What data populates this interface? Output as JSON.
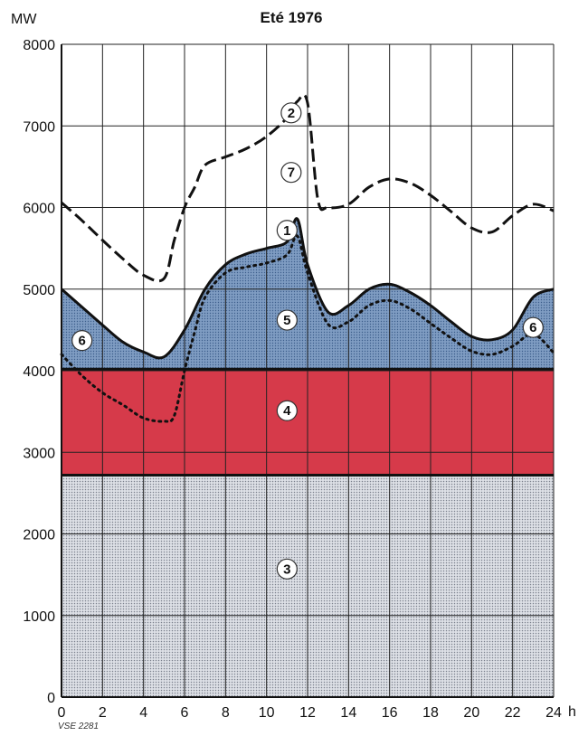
{
  "chart_data": {
    "type": "area",
    "title": "Eté 1976",
    "ylabel": "MW",
    "xlabel": "h",
    "xlim": [
      0,
      24
    ],
    "ylim": [
      0,
      8000
    ],
    "x_ticks": [
      0,
      2,
      4,
      6,
      8,
      10,
      12,
      14,
      16,
      18,
      20,
      22,
      24
    ],
    "y_ticks": [
      0,
      1000,
      2000,
      3000,
      4000,
      5000,
      6000,
      7000,
      8000
    ],
    "grid": true,
    "colors": {
      "band_3": "#c9cdd6",
      "band_4": "#d63a4a",
      "band_5": "#6f8fb8",
      "grid": "#222222"
    },
    "bands": [
      {
        "label": "3",
        "from": 0,
        "to": 2720
      },
      {
        "label": "4",
        "from": 2720,
        "to": 4020
      }
    ],
    "series": [
      {
        "style": "solid",
        "x": [
          0,
          1,
          2,
          3,
          4,
          5,
          6,
          7,
          8,
          9,
          10,
          11,
          11.5,
          12,
          13,
          14,
          15,
          16,
          17,
          18,
          19,
          20,
          21,
          22,
          23,
          24
        ],
        "values": [
          5000,
          4780,
          4560,
          4350,
          4230,
          4170,
          4500,
          5000,
          5300,
          5430,
          5500,
          5580,
          5860,
          5300,
          4720,
          4800,
          5000,
          5060,
          4960,
          4800,
          4600,
          4420,
          4380,
          4500,
          4900,
          5000
        ]
      },
      {
        "style": "dotted",
        "x": [
          0,
          1,
          2,
          3,
          4,
          5,
          5.5,
          6,
          6.5,
          7,
          8,
          9,
          10,
          11,
          11.5,
          12,
          13,
          14,
          15,
          16,
          17,
          18,
          19,
          20,
          21,
          22,
          23,
          24
        ],
        "values": [
          4200,
          3940,
          3730,
          3580,
          3420,
          3380,
          3450,
          4000,
          4480,
          4900,
          5200,
          5270,
          5320,
          5420,
          5650,
          5200,
          4570,
          4600,
          4800,
          4860,
          4760,
          4580,
          4400,
          4240,
          4200,
          4300,
          4450,
          4220
        ]
      },
      {
        "style": "dashed",
        "x": [
          0,
          1,
          2,
          3,
          4,
          5,
          5.5,
          6,
          6.5,
          7,
          8,
          9,
          10,
          11,
          11.5,
          12,
          12.5,
          13,
          14,
          15,
          16,
          17,
          18,
          19,
          20,
          21,
          22,
          23,
          24
        ],
        "values": [
          6060,
          5840,
          5600,
          5370,
          5170,
          5130,
          5600,
          6000,
          6250,
          6520,
          6620,
          6720,
          6870,
          7100,
          7300,
          7280,
          6100,
          6000,
          6040,
          6250,
          6350,
          6300,
          6150,
          5950,
          5750,
          5700,
          5900,
          6040,
          5960
        ]
      }
    ],
    "annotations": [
      {
        "label": "2",
        "x": 11.2,
        "y": 7160
      },
      {
        "label": "7",
        "x": 11.2,
        "y": 6430
      },
      {
        "label": "1",
        "x": 11.0,
        "y": 5720
      },
      {
        "label": "5",
        "x": 11.0,
        "y": 4620
      },
      {
        "label": "6",
        "x": 1.0,
        "y": 4370
      },
      {
        "label": "6",
        "x": 23.0,
        "y": 4530
      },
      {
        "label": "4",
        "x": 11.0,
        "y": 3510
      },
      {
        "label": "3",
        "x": 11.0,
        "y": 1570
      }
    ],
    "footnote": "VSE 2281"
  }
}
